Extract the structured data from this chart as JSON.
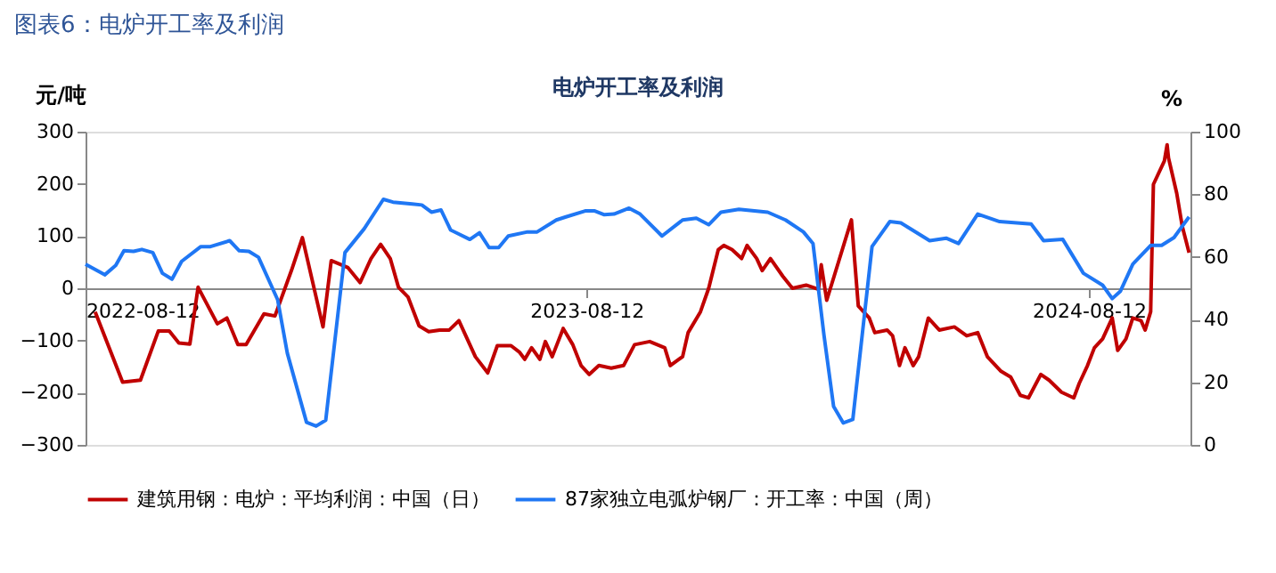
{
  "chart_data": {
    "type": "line",
    "title": "图表6：电炉开工率及利润",
    "subtitle": "电炉开工率及利润",
    "ylabel": "元/吨",
    "y2label": "%",
    "xlim": [
      "2022-08-12",
      "2024-10-25"
    ],
    "xticks": [
      "2022-08-12",
      "2023-08-12",
      "2024-08-12"
    ],
    "ylim": [
      -300,
      300
    ],
    "yticks": [
      -300,
      -200,
      -100,
      0,
      100,
      200,
      300
    ],
    "y2lim": [
      0,
      100
    ],
    "y2ticks": [
      0,
      20,
      40,
      60,
      80,
      100
    ],
    "grid": false,
    "legend": "bottom",
    "series": [
      {
        "name": "建筑用钢：电炉：平均利润：中国（日）",
        "color": "#c00000",
        "axis": "y",
        "x": [
          "2022-08-19",
          "2022-09-08",
          "2022-09-21",
          "2022-10-04",
          "2022-10-12",
          "2022-10-19",
          "2022-10-27",
          "2022-11-02",
          "2022-11-16",
          "2022-11-23",
          "2022-12-01",
          "2022-12-07",
          "2022-12-20",
          "2022-12-28",
          "2023-01-09",
          "2023-01-17",
          "2023-02-01",
          "2023-02-07",
          "2023-02-19",
          "2023-02-28",
          "2023-03-08",
          "2023-03-15",
          "2023-03-22",
          "2023-03-28",
          "2023-04-04",
          "2023-04-12",
          "2023-04-19",
          "2023-04-27",
          "2023-05-04",
          "2023-05-11",
          "2023-05-23",
          "2023-06-01",
          "2023-06-08",
          "2023-06-18",
          "2023-06-24",
          "2023-06-28",
          "2023-07-03",
          "2023-07-09",
          "2023-07-13",
          "2023-07-18",
          "2023-07-26",
          "2023-08-02",
          "2023-08-08",
          "2023-08-14",
          "2023-08-21",
          "2023-08-30",
          "2023-09-08",
          "2023-09-16",
          "2023-09-27",
          "2023-10-08",
          "2023-10-12",
          "2023-10-21",
          "2023-10-25",
          "2023-11-03",
          "2023-11-09",
          "2023-11-16",
          "2023-11-20",
          "2023-11-26",
          "2023-12-03",
          "2023-12-07",
          "2023-12-14",
          "2023-12-18",
          "2023-12-24",
          "2024-01-02",
          "2024-01-09",
          "2024-01-19",
          "2024-01-28",
          "2024-01-30",
          "2024-02-03",
          "2024-02-21",
          "2024-02-26",
          "2024-03-05",
          "2024-03-09",
          "2024-03-18",
          "2024-03-22",
          "2024-03-27",
          "2024-03-31",
          "2024-04-06",
          "2024-04-10",
          "2024-04-17",
          "2024-04-25",
          "2024-05-06",
          "2024-05-15",
          "2024-05-23",
          "2024-05-30",
          "2024-06-09",
          "2024-06-16",
          "2024-06-23",
          "2024-06-29",
          "2024-07-08",
          "2024-07-14",
          "2024-07-23",
          "2024-08-01",
          "2024-08-05",
          "2024-08-11",
          "2024-08-16",
          "2024-08-22",
          "2024-08-29",
          "2024-09-02",
          "2024-09-08",
          "2024-09-13",
          "2024-09-19",
          "2024-09-22",
          "2024-09-26",
          "2024-09-28",
          "2024-10-06",
          "2024-10-08",
          "2024-10-09",
          "2024-10-15",
          "2024-10-19",
          "2024-10-24"
        ],
        "values": [
          -45,
          -180,
          -176,
          -82,
          -82,
          -105,
          -107,
          2,
          -68,
          -57,
          -108,
          -108,
          -49,
          -53,
          34,
          97,
          -74,
          53,
          40,
          11,
          57,
          84,
          57,
          2,
          -17,
          -72,
          -83,
          -80,
          -80,
          -62,
          -131,
          -162,
          -110,
          -110,
          -122,
          -136,
          -114,
          -136,
          -102,
          -131,
          -77,
          -108,
          -148,
          -165,
          -148,
          -153,
          -148,
          -108,
          -102,
          -114,
          -148,
          -131,
          -85,
          -45,
          0,
          74,
          82,
          74,
          57,
          82,
          57,
          34,
          57,
          23,
          0,
          6,
          -2,
          45,
          -23,
          131,
          -34,
          -57,
          -85,
          -80,
          -91,
          -148,
          -114,
          -148,
          -131,
          -57,
          -80,
          -74,
          -91,
          -85,
          -131,
          -159,
          -170,
          -205,
          -210,
          -165,
          -176,
          -199,
          -210,
          -182,
          -148,
          -114,
          -97,
          -57,
          -119,
          -97,
          -57,
          -62,
          -80,
          -45,
          199,
          244,
          275,
          250,
          182,
          119,
          68
        ]
      },
      {
        "name": "87家独立电弧炉钢厂：开工率：中国（周）",
        "color": "#1f77f4",
        "axis": "y2",
        "x": [
          "2022-08-12",
          "2022-08-26",
          "2022-09-03",
          "2022-09-09",
          "2022-09-16",
          "2022-09-22",
          "2022-09-30",
          "2022-10-07",
          "2022-10-14",
          "2022-10-21",
          "2022-11-04",
          "2022-11-11",
          "2022-11-25",
          "2022-12-02",
          "2022-12-09",
          "2022-12-16",
          "2022-12-30",
          "2023-01-06",
          "2023-01-20",
          "2023-01-27",
          "2023-02-03",
          "2023-02-17",
          "2023-03-03",
          "2023-03-17",
          "2023-03-24",
          "2023-04-07",
          "2023-04-14",
          "2023-04-21",
          "2023-04-28",
          "2023-05-05",
          "2023-05-19",
          "2023-05-26",
          "2023-06-02",
          "2023-06-09",
          "2023-06-16",
          "2023-06-30",
          "2023-07-07",
          "2023-07-21",
          "2023-07-28",
          "2023-08-11",
          "2023-08-18",
          "2023-08-25",
          "2023-09-01",
          "2023-09-12",
          "2023-09-20",
          "2023-10-06",
          "2023-10-21",
          "2023-10-31",
          "2023-11-09",
          "2023-11-18",
          "2023-12-01",
          "2023-12-22",
          "2024-01-04",
          "2024-01-17",
          "2024-01-24",
          "2024-02-01",
          "2024-02-08",
          "2024-02-15",
          "2024-02-22",
          "2024-03-07",
          "2024-03-20",
          "2024-03-28",
          "2024-04-18",
          "2024-04-30",
          "2024-05-09",
          "2024-05-23",
          "2024-06-08",
          "2024-07-01",
          "2024-07-10",
          "2024-07-24",
          "2024-08-08",
          "2024-08-22",
          "2024-08-29",
          "2024-09-04",
          "2024-09-13",
          "2024-09-26",
          "2024-10-04",
          "2024-10-13",
          "2024-10-24"
        ],
        "values": [
          57.7,
          54.3,
          57.3,
          62,
          61.8,
          62.4,
          61.4,
          54.8,
          52.9,
          58.6,
          63.3,
          63.3,
          65.2,
          62,
          61.8,
          59.9,
          46.3,
          29.3,
          7.2,
          6,
          7.9,
          61.4,
          69,
          78.4,
          77.5,
          76.9,
          76.6,
          74.3,
          75,
          68.6,
          65.6,
          67.7,
          63,
          63,
          66.7,
          68,
          68,
          71.8,
          72.8,
          74.7,
          74.7,
          73.5,
          73.7,
          75.6,
          73.7,
          66.7,
          71.8,
          72.4,
          70.3,
          74.3,
          75.2,
          74.3,
          71.8,
          68,
          64.3,
          35,
          12.3,
          7,
          8.1,
          63.3,
          71.3,
          70.9,
          65.2,
          66,
          64.3,
          73.7,
          71.3,
          70.5,
          65.2,
          65.6,
          54.8,
          51,
          46.7,
          49.1,
          57.7,
          63.7,
          63.7,
          66.2,
          72.8
        ]
      }
    ]
  }
}
